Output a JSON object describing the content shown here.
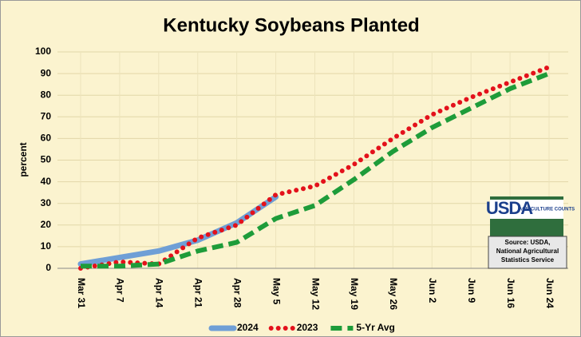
{
  "chart_data": {
    "type": "line",
    "title": "Kentucky Soybeans Planted",
    "y_label": "percent",
    "categories": [
      "Mar 31",
      "Apr 7",
      "Apr 14",
      "Apr 21",
      "Apr 28",
      "May 5",
      "May 12",
      "May 19",
      "May 26",
      "Jun 2",
      "Jun 9",
      "Jun 16",
      "Jun 24"
    ],
    "series": [
      {
        "name": "2024",
        "color": "#6f9fd6",
        "style": "solid",
        "values": [
          2,
          5,
          8,
          13,
          21,
          33,
          null,
          null,
          null,
          null,
          null,
          null,
          null
        ]
      },
      {
        "name": "2023",
        "color": "#e3111b",
        "style": "dotted",
        "values": [
          0,
          3,
          2,
          14,
          20,
          34,
          38,
          48,
          60,
          71,
          79,
          86,
          93
        ]
      },
      {
        "name": "5-Yr Avg",
        "color": "#1e9c3a",
        "style": "dashed",
        "values": [
          1,
          1,
          2,
          8,
          12,
          23,
          29,
          41,
          54,
          65,
          74,
          83,
          90
        ]
      }
    ],
    "ylim": [
      0,
      100
    ],
    "yticks": [
      0,
      10,
      20,
      30,
      40,
      50,
      60,
      70,
      80,
      90,
      100
    ],
    "grid": true,
    "legend": "bottom",
    "logo": {
      "text": "USDA",
      "tagline": "AGRICULTURE COUNTS"
    },
    "source": [
      "Source: USDA,",
      "National Agricultural",
      "Statistics Service"
    ]
  }
}
